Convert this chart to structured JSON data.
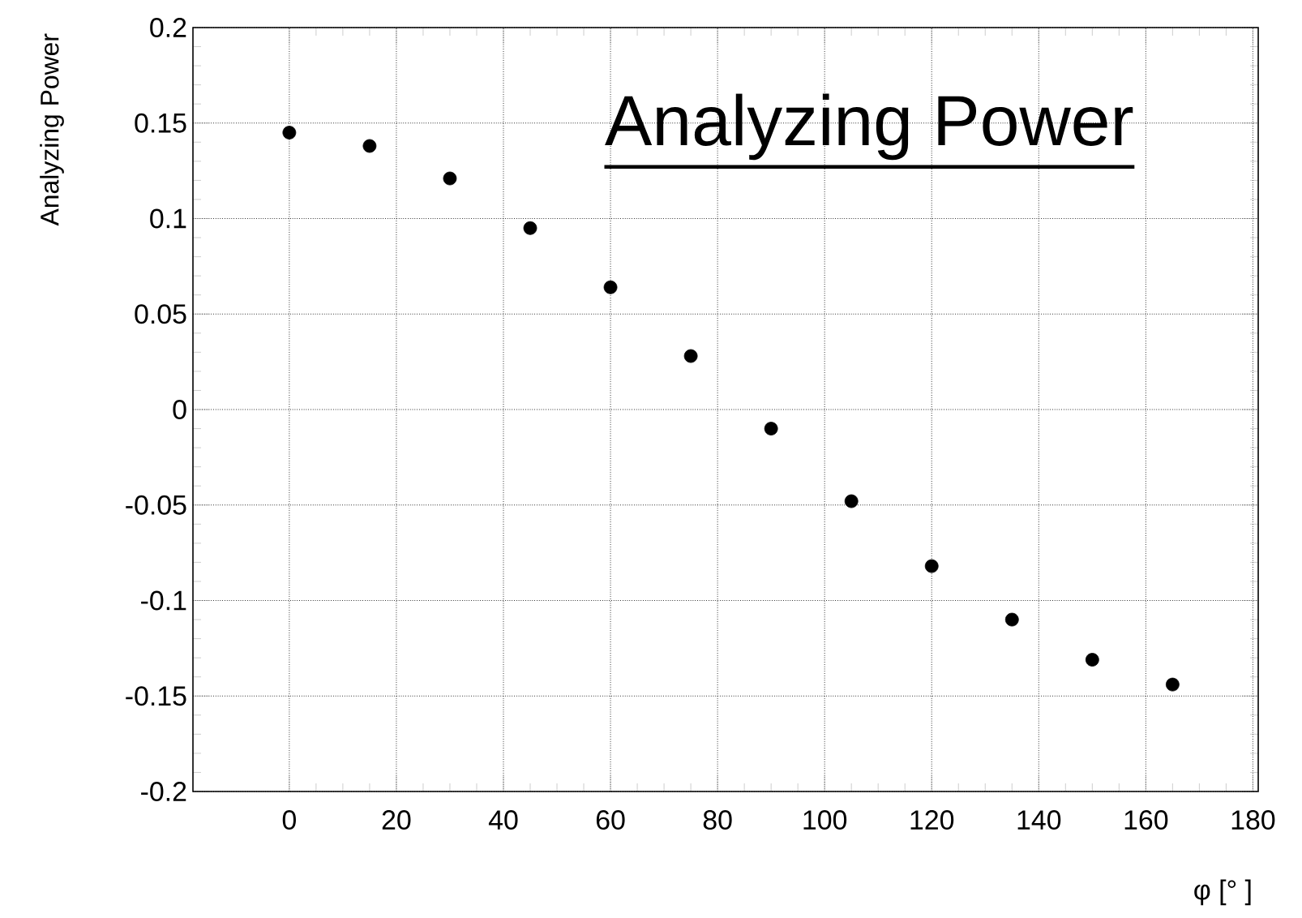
{
  "chart_data": {
    "type": "scatter",
    "title": "Analyzing Power",
    "xlabel": "φ [° ]",
    "ylabel": "Analyzing Power",
    "x": [
      0,
      15,
      30,
      45,
      60,
      75,
      90,
      105,
      120,
      135,
      150,
      165
    ],
    "values": [
      0.145,
      0.138,
      0.121,
      0.095,
      0.064,
      0.028,
      -0.01,
      -0.048,
      -0.082,
      -0.11,
      -0.131,
      -0.144
    ],
    "color": "#000000",
    "marker": "circle",
    "xlim": [
      -18,
      181
    ],
    "ylim": [
      -0.2,
      0.2
    ],
    "xticks": [
      0,
      20,
      40,
      60,
      80,
      100,
      120,
      140,
      160,
      180
    ],
    "yticks": [
      -0.2,
      -0.15,
      -0.1,
      -0.05,
      0,
      0.05,
      0.1,
      0.15,
      0.2
    ],
    "grid": true
  }
}
